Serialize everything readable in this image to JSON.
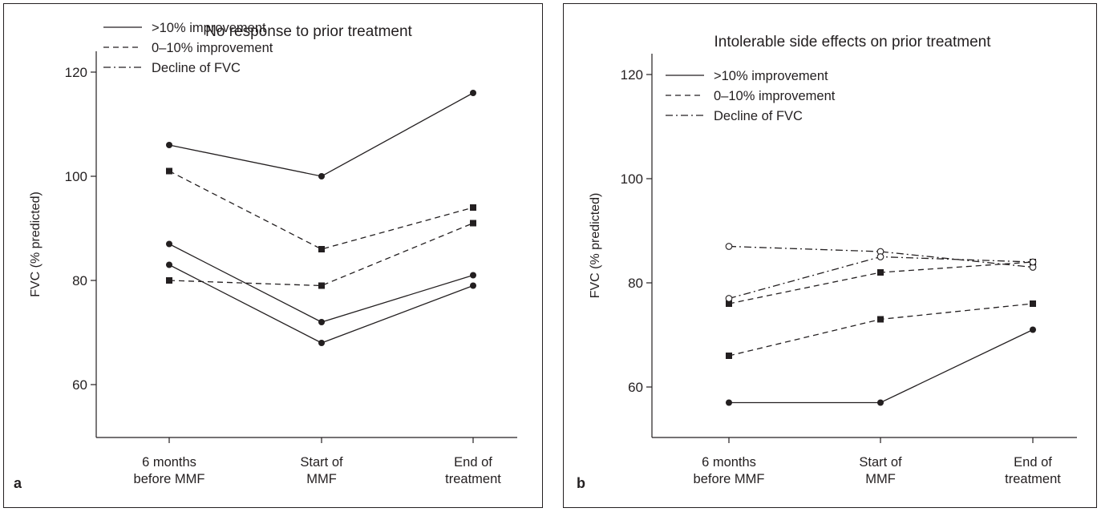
{
  "chart_data": [
    {
      "type": "line",
      "panel_label": "a",
      "title": "No response to prior treatment",
      "ylabel": "FVC (% predicted)",
      "xlabel": "",
      "categories": [
        "6 months\nbefore MMF",
        "Start of\nMMF",
        "End of\ntreatment"
      ],
      "ylim": [
        50,
        124
      ],
      "yticks": [
        60,
        80,
        100,
        120
      ],
      "grid": false,
      "legend_position": "top-left",
      "legend": [
        {
          "label": ">10% improvement",
          "style": "solid"
        },
        {
          "label": "0–10% improvement",
          "style": "dashed"
        },
        {
          "label": "Decline of FVC",
          "style": "dashdot"
        }
      ],
      "series": [
        {
          "style": "solid",
          "marker": "circle-filled",
          "values": [
            106,
            100,
            116
          ]
        },
        {
          "style": "solid",
          "marker": "circle-filled",
          "values": [
            87,
            72,
            81
          ]
        },
        {
          "style": "solid",
          "marker": "circle-filled",
          "values": [
            83,
            68,
            79
          ]
        },
        {
          "style": "dashed",
          "marker": "square-filled",
          "values": [
            101,
            86,
            94
          ]
        },
        {
          "style": "dashed",
          "marker": "square-filled",
          "values": [
            80,
            79,
            91
          ]
        }
      ]
    },
    {
      "type": "line",
      "panel_label": "b",
      "title": "Intolerable side effects on prior treatment",
      "ylabel": "FVC (% predicted)",
      "xlabel": "",
      "categories": [
        "6 months\nbefore MMF",
        "Start of\nMMF",
        "End of\ntreatment"
      ],
      "ylim": [
        50,
        124
      ],
      "yticks": [
        60,
        80,
        100,
        120
      ],
      "grid": false,
      "legend_position": "top-left",
      "legend": [
        {
          "label": ">10% improvement",
          "style": "solid"
        },
        {
          "label": "0–10% improvement",
          "style": "dashed"
        },
        {
          "label": "Decline of FVC",
          "style": "dashdot"
        }
      ],
      "series": [
        {
          "style": "solid",
          "marker": "circle-filled",
          "values": [
            57,
            57,
            71
          ]
        },
        {
          "style": "dashed",
          "marker": "square-filled",
          "values": [
            66,
            73,
            76
          ]
        },
        {
          "style": "dashed",
          "marker": "square-filled",
          "values": [
            76,
            82,
            84
          ]
        },
        {
          "style": "dashdot",
          "marker": "circle-open",
          "values": [
            87,
            86,
            83
          ]
        },
        {
          "style": "dashdot",
          "marker": "circle-open",
          "values": [
            77,
            85,
            84
          ]
        }
      ]
    }
  ]
}
